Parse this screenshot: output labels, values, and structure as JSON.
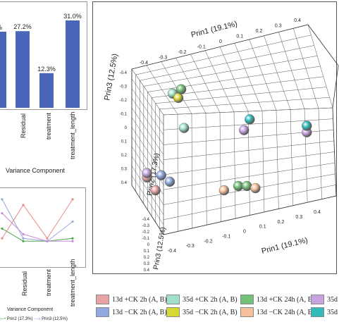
{
  "chart_data": [
    {
      "type": "bar",
      "xlabel": "Variance Component",
      "categories": [
        "",
        "Residual",
        "treatment",
        "treatment_length"
      ],
      "values": [
        27.0,
        27.2,
        12.3,
        31.0
      ],
      "data_labels": [
        "%",
        "27.2%",
        "12.3%",
        "31.0%"
      ],
      "ylim": [
        0,
        33
      ],
      "color": "#4a66b8"
    },
    {
      "type": "line",
      "xlabel": "Variance Component",
      "categories": [
        "",
        "Residual",
        "treatment",
        "treatment_length"
      ],
      "series": [
        {
          "name": "Prin2 (17.3%)",
          "values": [
            19,
            10,
            10,
            12
          ],
          "color": "#4aaa4a"
        },
        {
          "name": "Prin3 (12.5%)",
          "values": [
            40,
            12,
            10,
            24
          ],
          "color": "#9aa8d8"
        },
        {
          "name": "",
          "values": [
            12,
            36,
            12,
            40
          ],
          "color": "#e88a8a"
        },
        {
          "name": "",
          "values": [
            30,
            15,
            10,
            10
          ],
          "color": "#c48ad8"
        }
      ],
      "ylim": [
        0,
        45
      ]
    },
    {
      "type": "scatter",
      "axes": [
        "Prin1 (19.1%)",
        "Prin3 (12.5%)",
        "Prin2 (17.3%)"
      ],
      "box_tick_labels": [
        "-0.4",
        "-0.3",
        "-0.2",
        "-0.1",
        "0",
        "0.1",
        "0.2",
        "0.3",
        "0.4"
      ],
      "groups": [
        {
          "label": "13d +CK  2h (A, B)",
          "color": "#e8a3a3"
        },
        {
          "label": "35d +CK  2h (A, B)",
          "color": "#9ee0c8"
        },
        {
          "label": "13d +CK  24h (A, B)",
          "color": "#73c07a"
        },
        {
          "label": "35d ",
          "color": "#c7a3e0"
        },
        {
          "label": "13d −CK  2h (A, B)",
          "color": "#8fa9e0"
        },
        {
          "label": "35d −CK  2h (A, B)",
          "color": "#d8d833"
        },
        {
          "label": "13d −CK  24h (A, B)",
          "color": "#f5c09a"
        },
        {
          "label": "35d",
          "color": "#33bbbb"
        }
      ],
      "points": [
        {
          "group": "35d +CK  2h (A, B)",
          "x": -0.21,
          "y": 0.24
        },
        {
          "group": "35d −CK  2h (A, B)",
          "x": -0.19,
          "y": 0.22
        },
        {
          "group": "13d +CK  24h (A, B)",
          "x": -0.18,
          "y": 0.26
        },
        {
          "group": "35d +CK  2h (A, B)",
          "x": -0.17,
          "y": 0.08
        },
        {
          "group": "35d",
          "x": 0.06,
          "y": 0.12
        },
        {
          "group": "35d ",
          "x": 0.04,
          "y": 0.07
        },
        {
          "group": "35d ",
          "x": 0.26,
          "y": 0.06
        },
        {
          "group": "35d",
          "x": 0.26,
          "y": 0.09
        },
        {
          "group": "13d −CK  2h (A, B)",
          "x": -0.25,
          "y": -0.14
        },
        {
          "group": "13d +CK  2h (A, B)",
          "x": -0.3,
          "y": -0.15
        },
        {
          "group": "35d ",
          "x": -0.3,
          "y": -0.13
        },
        {
          "group": "13d −CK  2h (A, B)",
          "x": -0.22,
          "y": -0.17
        },
        {
          "group": "13d +CK  2h (A, B)",
          "x": -0.27,
          "y": -0.21
        },
        {
          "group": "13d −CK  24h (A, B)",
          "x": -0.03,
          "y": -0.21
        },
        {
          "group": "13d +CK  24h (A, B)",
          "x": 0.02,
          "y": -0.19
        },
        {
          "group": "13d +CK  24h (A, B)",
          "x": 0.05,
          "y": -0.19
        },
        {
          "group": "13d −CK  24h (A, B)",
          "x": 0.08,
          "y": -0.2
        }
      ]
    }
  ],
  "small_legend": [
    "Prin2 (17.3%)",
    "Prin3 (12.5%)"
  ]
}
